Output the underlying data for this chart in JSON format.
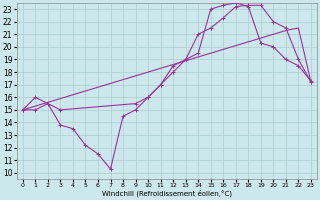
{
  "xlabel": "Windchill (Refroidissement éolien,°C)",
  "bg_color": "#cce8ec",
  "grid_color": "#aacccc",
  "line_color": "#993399",
  "xlim": [
    -0.5,
    23.5
  ],
  "ylim": [
    9.5,
    23.5
  ],
  "xticks": [
    0,
    1,
    2,
    3,
    4,
    5,
    6,
    7,
    8,
    9,
    10,
    11,
    12,
    13,
    14,
    15,
    16,
    17,
    18,
    19,
    20,
    21,
    22,
    23
  ],
  "yticks": [
    10,
    11,
    12,
    13,
    14,
    15,
    16,
    17,
    18,
    19,
    20,
    21,
    22,
    23
  ],
  "series1_x": [
    0,
    1,
    2,
    3,
    4,
    5,
    6,
    7,
    8,
    9,
    10,
    11,
    12,
    13,
    14,
    15,
    16,
    17,
    18,
    19,
    20,
    21,
    22,
    23
  ],
  "series1_y": [
    15.0,
    15.3,
    15.6,
    15.9,
    16.2,
    16.5,
    16.8,
    17.1,
    17.4,
    17.7,
    18.0,
    18.3,
    18.6,
    18.9,
    19.2,
    19.5,
    19.8,
    20.1,
    20.4,
    20.7,
    21.0,
    21.3,
    21.5,
    17.2
  ],
  "series2_x": [
    0,
    1,
    3,
    9,
    10,
    11,
    12,
    13,
    14,
    15,
    16,
    17,
    18,
    19,
    20,
    21,
    22,
    23
  ],
  "series2_y": [
    15.0,
    16.0,
    15.0,
    15.5,
    16.0,
    17.0,
    18.0,
    19.0,
    21.0,
    21.5,
    22.3,
    23.2,
    23.3,
    23.3,
    22.0,
    21.5,
    19.0,
    17.2
  ],
  "series3_x": [
    0,
    1,
    2,
    3,
    4,
    5,
    6,
    7,
    8,
    9,
    10,
    11,
    12,
    13,
    14,
    15,
    16,
    17,
    18,
    19,
    20,
    21,
    22,
    23
  ],
  "series3_y": [
    15.0,
    15.0,
    15.5,
    13.8,
    13.5,
    12.2,
    11.5,
    10.3,
    14.5,
    15.0,
    16.0,
    17.0,
    18.5,
    19.0,
    19.5,
    23.0,
    23.3,
    23.5,
    23.2,
    20.3,
    20.0,
    19.0,
    18.5,
    17.3
  ]
}
